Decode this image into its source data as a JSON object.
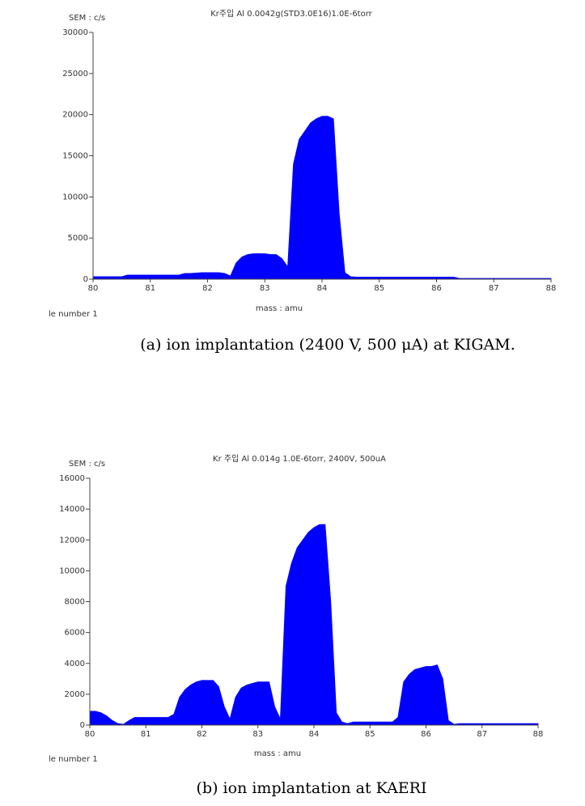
{
  "chart_data": [
    {
      "type": "area",
      "title": "Kr주입 Al 0.0042g(STD3.0E16)1.0E-6torr",
      "y_label": "SEM : c/s",
      "x_label": "mass : amu",
      "footnote": "le number 1",
      "caption": "(a) ion implantation (2400 V, 500 μA) at KIGAM.",
      "color": "#0000ff",
      "xlim": [
        80,
        88
      ],
      "xticks": [
        80,
        81,
        82,
        83,
        84,
        85,
        86,
        87,
        88
      ],
      "ylim": [
        0,
        30000
      ],
      "yticks": [
        0,
        5000,
        10000,
        15000,
        20000,
        25000,
        30000
      ],
      "x": [
        80.0,
        80.1,
        80.2,
        80.3,
        80.4,
        80.5,
        80.6,
        80.7,
        80.8,
        80.9,
        81.0,
        81.1,
        81.2,
        81.3,
        81.4,
        81.5,
        81.6,
        81.7,
        81.8,
        81.9,
        82.0,
        82.1,
        82.2,
        82.3,
        82.4,
        82.5,
        82.6,
        82.7,
        82.8,
        82.9,
        83.0,
        83.1,
        83.2,
        83.3,
        83.4,
        83.5,
        83.6,
        83.7,
        83.8,
        83.9,
        84.0,
        84.1,
        84.2,
        84.3,
        84.4,
        84.5,
        84.6,
        84.7,
        84.8,
        84.9,
        85.0,
        85.1,
        85.2,
        85.3,
        85.4,
        85.5,
        85.6,
        85.7,
        85.8,
        85.9,
        86.0,
        86.1,
        86.2,
        86.3,
        86.4,
        86.5,
        86.6,
        86.7,
        86.8,
        86.9,
        87.0,
        87.1,
        87.2,
        87.3,
        87.4,
        87.5,
        87.6,
        87.7,
        87.8,
        87.9,
        88.0
      ],
      "values": [
        300,
        300,
        300,
        300,
        300,
        300,
        500,
        500,
        500,
        500,
        500,
        500,
        500,
        500,
        500,
        500,
        700,
        700,
        750,
        800,
        800,
        800,
        800,
        700,
        400,
        2000,
        2700,
        3000,
        3100,
        3100,
        3100,
        3000,
        3000,
        2500,
        1500,
        14000,
        17000,
        18000,
        19000,
        19500,
        19800,
        19800,
        19500,
        8000,
        800,
        300,
        250,
        250,
        250,
        250,
        250,
        250,
        250,
        250,
        250,
        250,
        250,
        250,
        250,
        250,
        250,
        250,
        250,
        250,
        100,
        100,
        100,
        100,
        100,
        100,
        100,
        100,
        100,
        100,
        100,
        100,
        100,
        100,
        100,
        100,
        100
      ]
    },
    {
      "type": "area",
      "title": "Kr 주입 Al 0.014g 1.0E-6torr, 2400V, 500uA",
      "y_label": "SEM : c/s",
      "x_label": "mass : amu",
      "footnote": "le number 1",
      "caption": "(b) ion implantation at KAERI",
      "color": "#0000ff",
      "xlim": [
        80,
        88
      ],
      "xticks": [
        80,
        81,
        82,
        83,
        84,
        85,
        86,
        87,
        88
      ],
      "ylim": [
        0,
        16000
      ],
      "yticks": [
        0,
        2000,
        4000,
        6000,
        8000,
        10000,
        12000,
        14000,
        16000
      ],
      "x": [
        80.0,
        80.1,
        80.2,
        80.3,
        80.4,
        80.5,
        80.6,
        80.7,
        80.8,
        80.9,
        81.0,
        81.1,
        81.2,
        81.3,
        81.4,
        81.5,
        81.6,
        81.7,
        81.8,
        81.9,
        82.0,
        82.1,
        82.2,
        82.3,
        82.4,
        82.5,
        82.6,
        82.7,
        82.8,
        82.9,
        83.0,
        83.1,
        83.2,
        83.3,
        83.4,
        83.5,
        83.6,
        83.7,
        83.8,
        83.9,
        84.0,
        84.1,
        84.2,
        84.3,
        84.4,
        84.5,
        84.6,
        84.7,
        84.8,
        84.9,
        85.0,
        85.1,
        85.2,
        85.3,
        85.4,
        85.5,
        85.6,
        85.7,
        85.8,
        85.9,
        86.0,
        86.1,
        86.2,
        86.3,
        86.4,
        86.5,
        86.6,
        86.7,
        86.8,
        86.9,
        87.0,
        87.1,
        87.2,
        87.3,
        87.4,
        87.5,
        87.6,
        87.7,
        87.8,
        87.9,
        88.0
      ],
      "values": [
        900,
        900,
        800,
        600,
        300,
        100,
        50,
        300,
        500,
        500,
        500,
        500,
        500,
        500,
        500,
        700,
        1800,
        2300,
        2600,
        2800,
        2900,
        2900,
        2900,
        2500,
        1200,
        400,
        1800,
        2400,
        2600,
        2700,
        2800,
        2800,
        2800,
        1200,
        400,
        9000,
        10500,
        11500,
        12000,
        12500,
        12800,
        13000,
        13000,
        8000,
        800,
        200,
        100,
        200,
        200,
        200,
        200,
        200,
        200,
        200,
        200,
        500,
        2800,
        3300,
        3600,
        3700,
        3800,
        3800,
        3900,
        3000,
        300,
        50,
        100,
        100,
        100,
        100,
        100,
        100,
        100,
        100,
        100,
        100,
        100,
        100,
        100,
        100,
        100
      ]
    }
  ]
}
